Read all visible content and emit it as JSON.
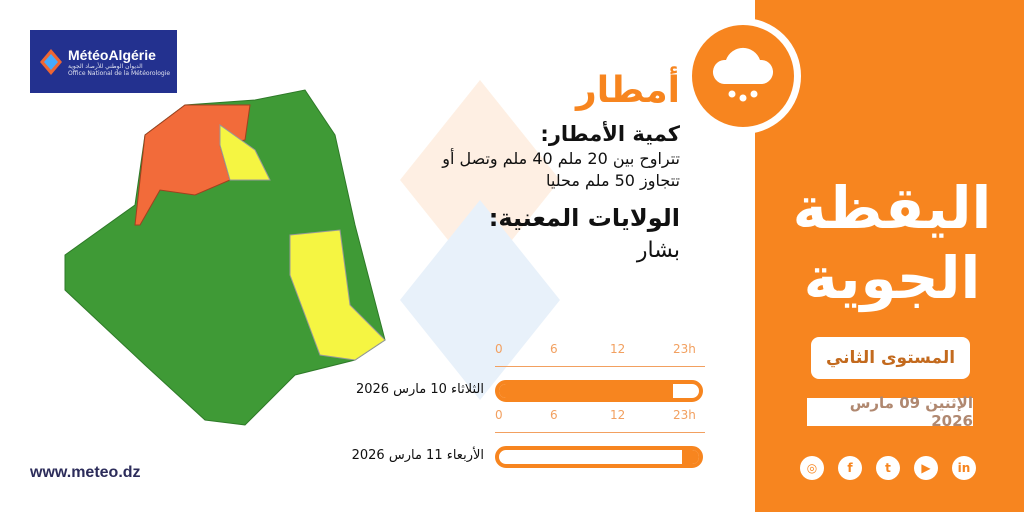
{
  "logo": {
    "name": "MétéoAlgérie",
    "subtitle_ar": "الديوان الوطني للأرصاد الجوية",
    "subtitle_fr": "Office National de la Météorologie"
  },
  "website": "www.meteo.dz",
  "hazard": {
    "title": "أمطار",
    "icon": "rain-cloud-icon"
  },
  "amount": {
    "heading": "كمية الأمطار:",
    "line1": "تتراوح بين 20 ملم 40 ملم وتصل أو",
    "line2": "تتجاوز 50 ملم محليا"
  },
  "regions": {
    "heading": "الولايات المعنية:",
    "list": "بشار"
  },
  "bulletin": {
    "title_line1": "اليقظة",
    "title_line2": "الجوية",
    "level": "المستوى الثاني",
    "issue_date": "الإثنين 09 مارس 2026"
  },
  "timeline": {
    "ticks": [
      "0",
      "6",
      "12",
      "23h"
    ],
    "days": [
      {
        "label": "الثلاثاء 10 مارس 2026",
        "active_from_h": 0,
        "active_to_h": 20
      },
      {
        "label": "الأربعاء 11 مارس 2026",
        "active_from_h": 21,
        "active_to_h": 23
      }
    ]
  },
  "social": [
    {
      "icon": "instagram-icon",
      "glyph": "◎"
    },
    {
      "icon": "facebook-icon",
      "glyph": "f"
    },
    {
      "icon": "twitter-icon",
      "glyph": "t"
    },
    {
      "icon": "youtube-icon",
      "glyph": "▶"
    },
    {
      "icon": "linkedin-icon",
      "glyph": "in"
    }
  ],
  "colors": {
    "accent": "#f7851f",
    "orange_alert": "#f26b3a",
    "yellow_alert": "#f5f542",
    "green": "#3f9a36",
    "logo_bg": "#23318f"
  }
}
